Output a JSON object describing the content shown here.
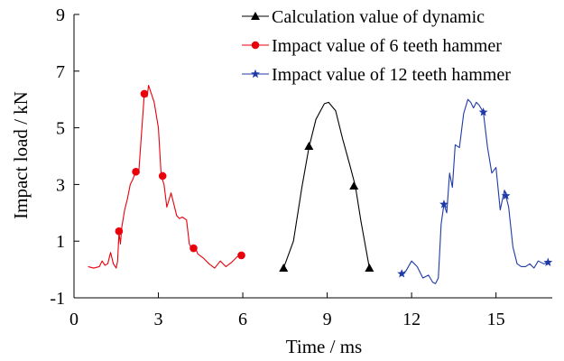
{
  "chart_data": {
    "type": "line",
    "xlabel": "Time / ms",
    "ylabel": "Impact load / kN",
    "xlim": [
      0,
      17
    ],
    "ylim": [
      -1,
      9
    ],
    "xticks": [
      0,
      3,
      6,
      9,
      12,
      15
    ],
    "yticks": [
      -1,
      1,
      3,
      5,
      7,
      9
    ],
    "grid": false,
    "legend_position": "top-right",
    "series": [
      {
        "name": "Calculation value of dynamic",
        "color": "#000000",
        "marker": "triangle",
        "x": [
          7.45,
          7.8,
          8.1,
          8.35,
          8.6,
          8.9,
          9.05,
          9.3,
          9.55,
          9.8,
          10.0,
          10.2,
          10.5
        ],
        "y": [
          0.05,
          1.0,
          2.9,
          4.3,
          5.3,
          5.85,
          5.9,
          5.6,
          4.6,
          3.7,
          2.95,
          1.7,
          0.05
        ],
        "markers_x": [
          7.45,
          8.35,
          9.95,
          10.5
        ],
        "markers_y": [
          0.05,
          4.35,
          2.95,
          0.05
        ]
      },
      {
        "name": "Impact value of 6 teeth hammer",
        "color": "#e8000b",
        "marker": "circle",
        "x": [
          0.5,
          0.7,
          0.9,
          1.0,
          1.1,
          1.2,
          1.3,
          1.4,
          1.5,
          1.55,
          1.6,
          1.65,
          1.7,
          1.8,
          1.9,
          2.0,
          2.1,
          2.2,
          2.3,
          2.4,
          2.5,
          2.6,
          2.65,
          2.75,
          2.85,
          3.0,
          3.1,
          3.2,
          3.3,
          3.45,
          3.55,
          3.65,
          3.75,
          3.85,
          4.0,
          4.1,
          4.2,
          4.3,
          4.4,
          4.6,
          4.8,
          5.0,
          5.2,
          5.4,
          5.6,
          5.8,
          5.95
        ],
        "y": [
          0.1,
          0.05,
          0.1,
          0.3,
          0.15,
          0.2,
          0.6,
          0.2,
          0.05,
          0.3,
          1.3,
          0.9,
          1.5,
          2.1,
          2.5,
          3.0,
          3.2,
          3.5,
          3.4,
          4.8,
          6.2,
          6.1,
          6.5,
          6.2,
          5.9,
          5.0,
          3.3,
          3.0,
          2.2,
          2.7,
          2.3,
          1.9,
          1.8,
          1.85,
          1.75,
          0.9,
          0.7,
          0.8,
          0.55,
          0.4,
          0.2,
          0.05,
          0.3,
          0.1,
          0.25,
          0.45,
          0.5
        ],
        "markers_x": [
          1.6,
          2.2,
          2.5,
          3.15,
          4.25,
          5.95
        ],
        "markers_y": [
          1.35,
          3.45,
          6.2,
          3.3,
          0.75,
          0.5
        ]
      },
      {
        "name": "Impact value of 12 teeth hammer",
        "color": "#1f3aa8",
        "marker": "star",
        "x": [
          11.65,
          11.8,
          12.0,
          12.2,
          12.4,
          12.6,
          12.75,
          12.85,
          12.95,
          13.05,
          13.15,
          13.25,
          13.35,
          13.45,
          13.55,
          13.7,
          13.85,
          14.0,
          14.1,
          14.2,
          14.3,
          14.4,
          14.55,
          14.7,
          14.85,
          15.0,
          15.15,
          15.3,
          15.45,
          15.6,
          15.75,
          15.9,
          16.05,
          16.2,
          16.35,
          16.5,
          16.7,
          16.9
        ],
        "y": [
          -0.15,
          -0.05,
          0.3,
          0.1,
          -0.3,
          -0.2,
          -0.45,
          -0.5,
          -0.3,
          1.6,
          2.3,
          2.0,
          3.4,
          2.9,
          4.4,
          4.3,
          5.5,
          6.0,
          5.9,
          5.7,
          5.9,
          5.8,
          5.55,
          4.3,
          3.4,
          3.6,
          2.1,
          2.8,
          2.2,
          0.8,
          0.2,
          0.1,
          0.1,
          0.2,
          0.05,
          0.3,
          0.2,
          0.25
        ],
        "markers_x": [
          11.65,
          13.15,
          14.55,
          15.35,
          16.85
        ],
        "markers_y": [
          -0.15,
          2.3,
          5.55,
          2.6,
          0.25
        ]
      }
    ]
  }
}
